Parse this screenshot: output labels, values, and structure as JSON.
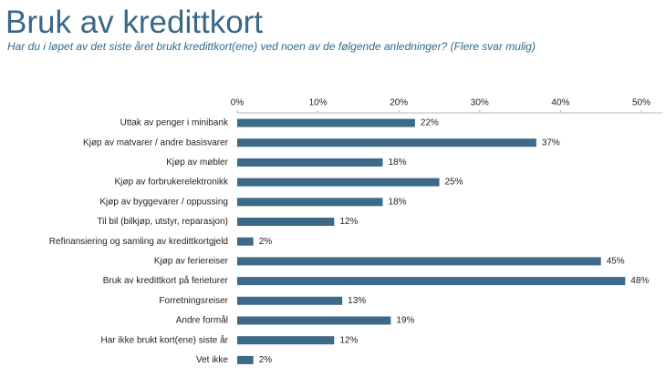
{
  "chart_data": {
    "type": "bar",
    "orientation": "horizontal",
    "title": "Bruk av kredittkort",
    "subtitle": "Har du i løpet av det siste året brukt kredittkort(ene) ved noen av de følgende anledninger? (Flere svar mulig)",
    "categories": [
      "Uttak av penger i minibank",
      "Kjøp av matvarer / andre basisvarer",
      "Kjøp av møbler",
      "Kjøp av forbrukerelektronikk",
      "Kjøp av byggevarer / oppussing",
      "Til bil (bilkjøp, utstyr, reparasjon)",
      "Refinansiering og samling av kredittkortgjeld",
      "Kjøp av feriereiser",
      "Bruk av kredittkort på ferieturer",
      "Forretningsreiser",
      "Andre formål",
      "Har ikke brukt kort(ene) siste år",
      "Vet ikke"
    ],
    "values": [
      22,
      37,
      18,
      25,
      18,
      12,
      2,
      45,
      48,
      13,
      19,
      12,
      2
    ],
    "value_labels": [
      "22%",
      "37%",
      "18%",
      "25%",
      "18%",
      "12%",
      "2%",
      "45%",
      "48%",
      "13%",
      "19%",
      "12%",
      "2%"
    ],
    "color": "#3e6a89",
    "xlim": [
      0,
      50
    ],
    "xticks": [
      {
        "value": 0,
        "label": "0%"
      },
      {
        "value": 10,
        "label": "10%"
      },
      {
        "value": 20,
        "label": "20%"
      },
      {
        "value": 30,
        "label": "30%"
      },
      {
        "value": 40,
        "label": "40%"
      },
      {
        "value": 50,
        "label": "50%"
      }
    ]
  }
}
